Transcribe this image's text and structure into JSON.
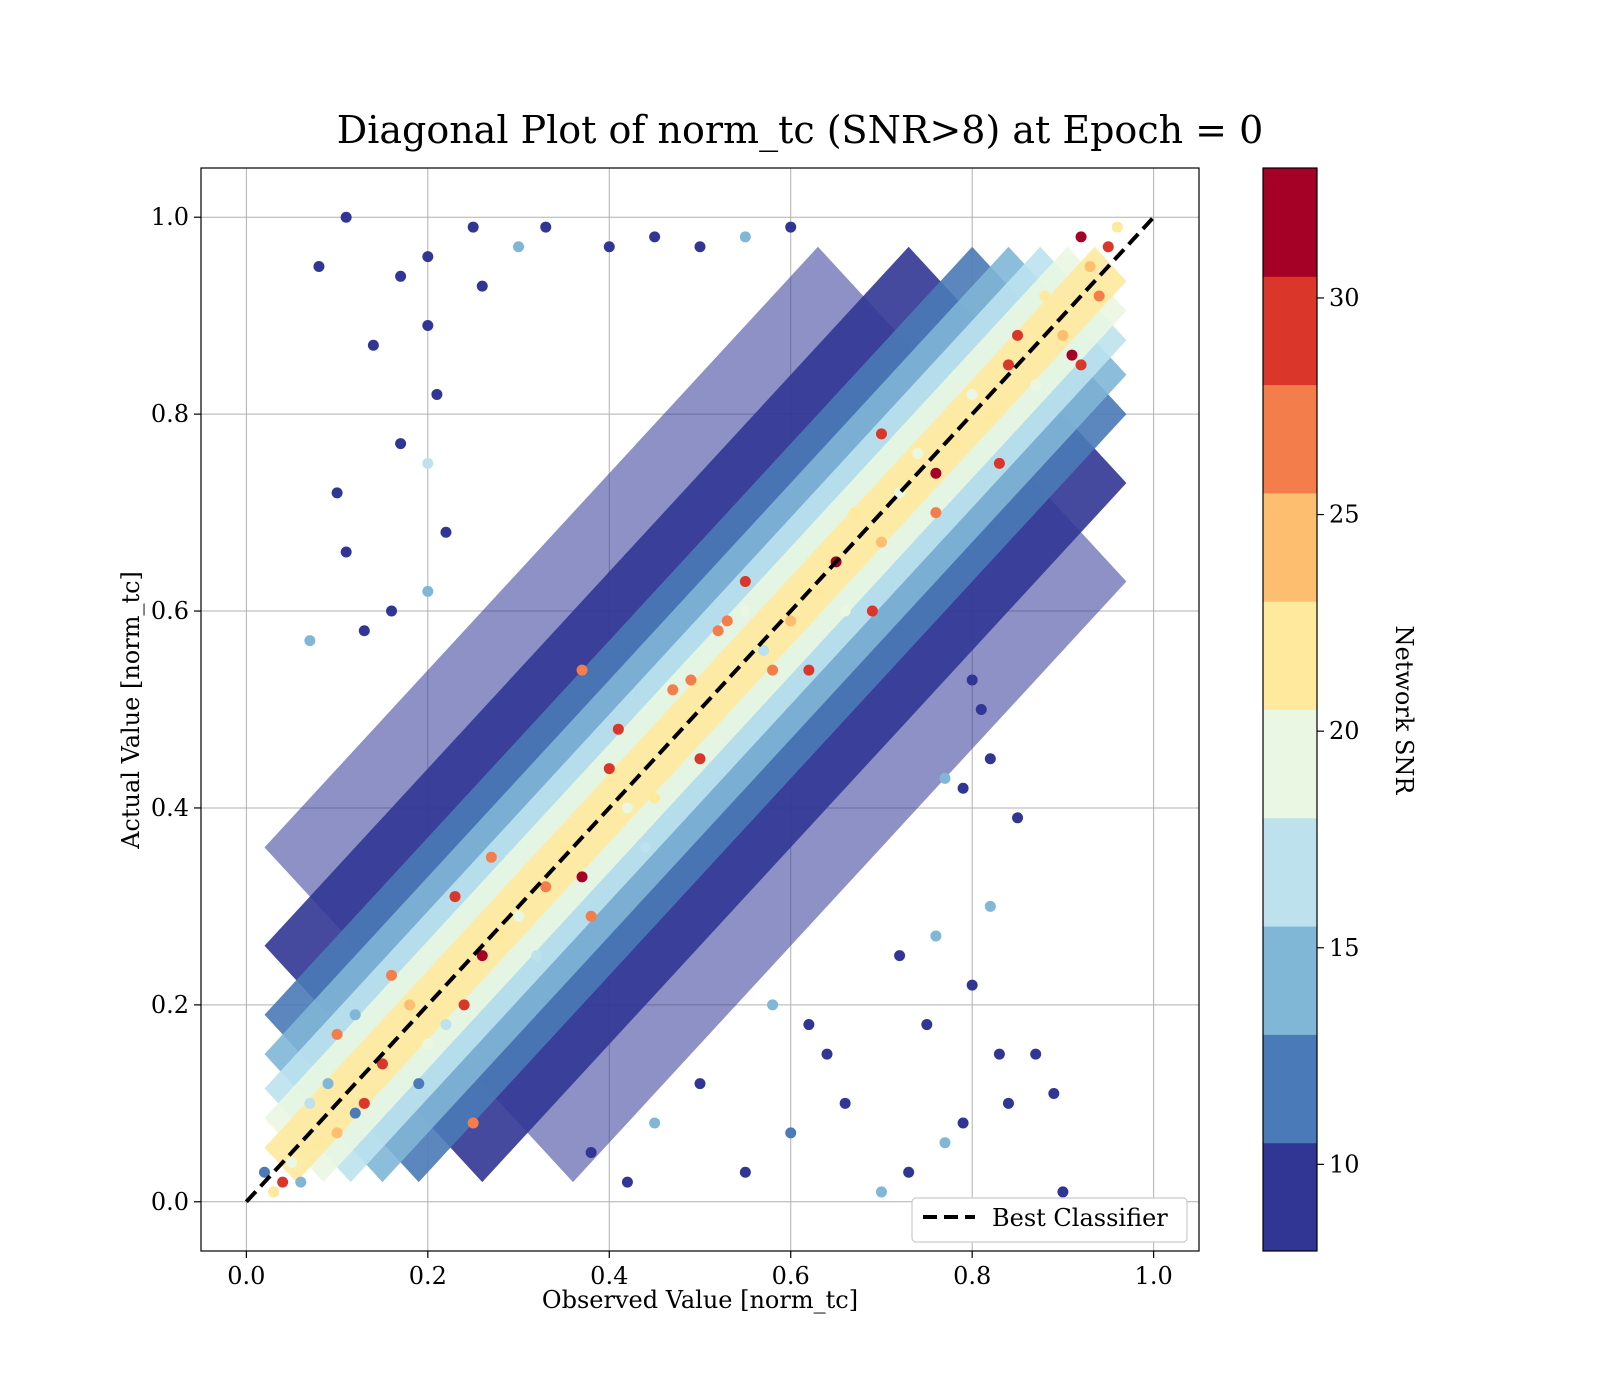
{
  "chart_data": {
    "type": "scatter",
    "title": "Diagonal Plot of norm_tc (SNR>8) at Epoch = 0",
    "xlabel": "Observed Value [norm_tc]",
    "ylabel": "Actual Value [norm_tc]",
    "xlim": [
      -0.05,
      1.05
    ],
    "ylim": [
      -0.05,
      1.05
    ],
    "x_ticks": [
      "0.0",
      "0.2",
      "0.4",
      "0.6",
      "0.8",
      "1.0"
    ],
    "y_ticks": [
      "0.0",
      "0.2",
      "0.4",
      "0.6",
      "0.8",
      "1.0"
    ],
    "grid": true,
    "legend": {
      "placement": "lower right",
      "entries": [
        {
          "label": "Best Classifier",
          "style": "black dashed line"
        }
      ]
    },
    "reference_line": {
      "label": "Best Classifier",
      "x": [
        0.0,
        1.0
      ],
      "y": [
        0.0,
        1.0
      ],
      "color": "#000000",
      "style": "dashed"
    },
    "colorbar": {
      "label": "Network SNR",
      "range": [
        8,
        33
      ],
      "ticks": [
        "10",
        "15",
        "20",
        "25",
        "30"
      ],
      "bins": [
        {
          "from": 8,
          "to": 10.5,
          "color": "#313695"
        },
        {
          "from": 10.5,
          "to": 13,
          "color": "#4a7ab7"
        },
        {
          "from": 13,
          "to": 15.5,
          "color": "#80b6d6"
        },
        {
          "from": 15.5,
          "to": 18,
          "color": "#bde2ee"
        },
        {
          "from": 18,
          "to": 20.5,
          "color": "#eaf7e2"
        },
        {
          "from": 20.5,
          "to": 23,
          "color": "#fee99d"
        },
        {
          "from": 23,
          "to": 25.5,
          "color": "#fdbe70"
        },
        {
          "from": 25.5,
          "to": 28,
          "color": "#f47e4b"
        },
        {
          "from": 28,
          "to": 30.5,
          "color": "#da362a"
        },
        {
          "from": 30.5,
          "to": 33,
          "color": "#a50026"
        }
      ]
    },
    "series": [
      {
        "points": [
          [
            0.04,
            0.02,
            30
          ],
          [
            0.03,
            0.01,
            22
          ],
          [
            0.05,
            0.04,
            19
          ],
          [
            0.06,
            0.02,
            15
          ],
          [
            0.02,
            0.03,
            12
          ],
          [
            0.08,
            0.06,
            21
          ],
          [
            0.07,
            0.1,
            17
          ],
          [
            0.1,
            0.07,
            23
          ],
          [
            0.09,
            0.12,
            14
          ],
          [
            0.12,
            0.09,
            11
          ],
          [
            0.1,
            0.17,
            26
          ],
          [
            0.13,
            0.1,
            29
          ],
          [
            0.15,
            0.14,
            28
          ],
          [
            0.12,
            0.19,
            13
          ],
          [
            0.16,
            0.23,
            27
          ],
          [
            0.18,
            0.2,
            24
          ],
          [
            0.2,
            0.16,
            20
          ],
          [
            0.19,
            0.12,
            12
          ],
          [
            0.22,
            0.18,
            16
          ],
          [
            0.24,
            0.2,
            28
          ],
          [
            0.23,
            0.31,
            28
          ],
          [
            0.26,
            0.25,
            31
          ],
          [
            0.25,
            0.08,
            27
          ],
          [
            0.28,
            0.27,
            22
          ],
          [
            0.27,
            0.35,
            27
          ],
          [
            0.3,
            0.29,
            18
          ],
          [
            0.32,
            0.25,
            17
          ],
          [
            0.33,
            0.32,
            26
          ],
          [
            0.35,
            0.36,
            21
          ],
          [
            0.37,
            0.33,
            33
          ],
          [
            0.38,
            0.29,
            27
          ],
          [
            0.37,
            0.54,
            26
          ],
          [
            0.41,
            0.48,
            28
          ],
          [
            0.4,
            0.44,
            28
          ],
          [
            0.42,
            0.4,
            19
          ],
          [
            0.45,
            0.41,
            22
          ],
          [
            0.44,
            0.36,
            16
          ],
          [
            0.47,
            0.52,
            27
          ],
          [
            0.5,
            0.45,
            28
          ],
          [
            0.49,
            0.53,
            26
          ],
          [
            0.52,
            0.58,
            27
          ],
          [
            0.53,
            0.59,
            26
          ],
          [
            0.55,
            0.6,
            20
          ],
          [
            0.55,
            0.63,
            28
          ],
          [
            0.57,
            0.56,
            17
          ],
          [
            0.58,
            0.54,
            27
          ],
          [
            0.6,
            0.59,
            23
          ],
          [
            0.62,
            0.54,
            28
          ],
          [
            0.63,
            0.62,
            22
          ],
          [
            0.65,
            0.65,
            31
          ],
          [
            0.66,
            0.6,
            18
          ],
          [
            0.67,
            0.7,
            21
          ],
          [
            0.69,
            0.6,
            30
          ],
          [
            0.7,
            0.67,
            24
          ],
          [
            0.7,
            0.78,
            28
          ],
          [
            0.72,
            0.72,
            20
          ],
          [
            0.74,
            0.76,
            19
          ],
          [
            0.76,
            0.74,
            31
          ],
          [
            0.76,
            0.7,
            27
          ],
          [
            0.78,
            0.77,
            22
          ],
          [
            0.8,
            0.82,
            18
          ],
          [
            0.82,
            0.8,
            21
          ],
          [
            0.83,
            0.75,
            28
          ],
          [
            0.84,
            0.85,
            29
          ],
          [
            0.85,
            0.88,
            28
          ],
          [
            0.87,
            0.83,
            20
          ],
          [
            0.88,
            0.92,
            22
          ],
          [
            0.9,
            0.88,
            24
          ],
          [
            0.91,
            0.86,
            32
          ],
          [
            0.92,
            0.85,
            28
          ],
          [
            0.92,
            0.98,
            31
          ],
          [
            0.93,
            0.95,
            23
          ],
          [
            0.94,
            0.92,
            27
          ],
          [
            0.95,
            0.97,
            29
          ],
          [
            0.96,
            0.99,
            22
          ],
          [
            0.11,
            1.0,
            9
          ],
          [
            0.08,
            0.95,
            9
          ],
          [
            0.17,
            0.94,
            9
          ],
          [
            0.14,
            0.87,
            9
          ],
          [
            0.2,
            0.89,
            9
          ],
          [
            0.25,
            0.99,
            9
          ],
          [
            0.3,
            0.97,
            13
          ],
          [
            0.33,
            0.99,
            9
          ],
          [
            0.2,
            0.96,
            9
          ],
          [
            0.26,
            0.93,
            9
          ],
          [
            0.07,
            0.57,
            15
          ],
          [
            0.1,
            0.72,
            9
          ],
          [
            0.11,
            0.66,
            9
          ],
          [
            0.13,
            0.58,
            9
          ],
          [
            0.16,
            0.6,
            9
          ],
          [
            0.17,
            0.77,
            9
          ],
          [
            0.2,
            0.75,
            16
          ],
          [
            0.21,
            0.82,
            9
          ],
          [
            0.22,
            0.68,
            9
          ],
          [
            0.2,
            0.62,
            14
          ],
          [
            0.85,
            0.39,
            9
          ],
          [
            0.82,
            0.3,
            13
          ],
          [
            0.8,
            0.22,
            9
          ],
          [
            0.84,
            0.1,
            9
          ],
          [
            0.87,
            0.15,
            9
          ],
          [
            0.89,
            0.11,
            9
          ],
          [
            0.9,
            0.01,
            9
          ],
          [
            0.83,
            0.15,
            9
          ],
          [
            0.79,
            0.08,
            9
          ],
          [
            0.77,
            0.06,
            14
          ],
          [
            0.7,
            0.01,
            15
          ],
          [
            0.73,
            0.03,
            9
          ],
          [
            0.75,
            0.18,
            9
          ],
          [
            0.72,
            0.25,
            9
          ],
          [
            0.76,
            0.27,
            14
          ],
          [
            0.8,
            0.53,
            9
          ],
          [
            0.82,
            0.45,
            9
          ],
          [
            0.79,
            0.42,
            9
          ],
          [
            0.77,
            0.43,
            14
          ],
          [
            0.81,
            0.5,
            9
          ],
          [
            0.5,
            0.97,
            9
          ],
          [
            0.55,
            0.98,
            13
          ],
          [
            0.6,
            0.99,
            9
          ],
          [
            0.45,
            0.98,
            9
          ],
          [
            0.4,
            0.97,
            9
          ],
          [
            0.42,
            0.02,
            9
          ],
          [
            0.38,
            0.05,
            9
          ],
          [
            0.45,
            0.08,
            13
          ],
          [
            0.5,
            0.12,
            9
          ],
          [
            0.55,
            0.03,
            9
          ],
          [
            0.6,
            0.07,
            12
          ],
          [
            0.64,
            0.15,
            9
          ],
          [
            0.66,
            0.1,
            9
          ],
          [
            0.58,
            0.2,
            15
          ],
          [
            0.62,
            0.18,
            9
          ]
        ]
      }
    ]
  }
}
